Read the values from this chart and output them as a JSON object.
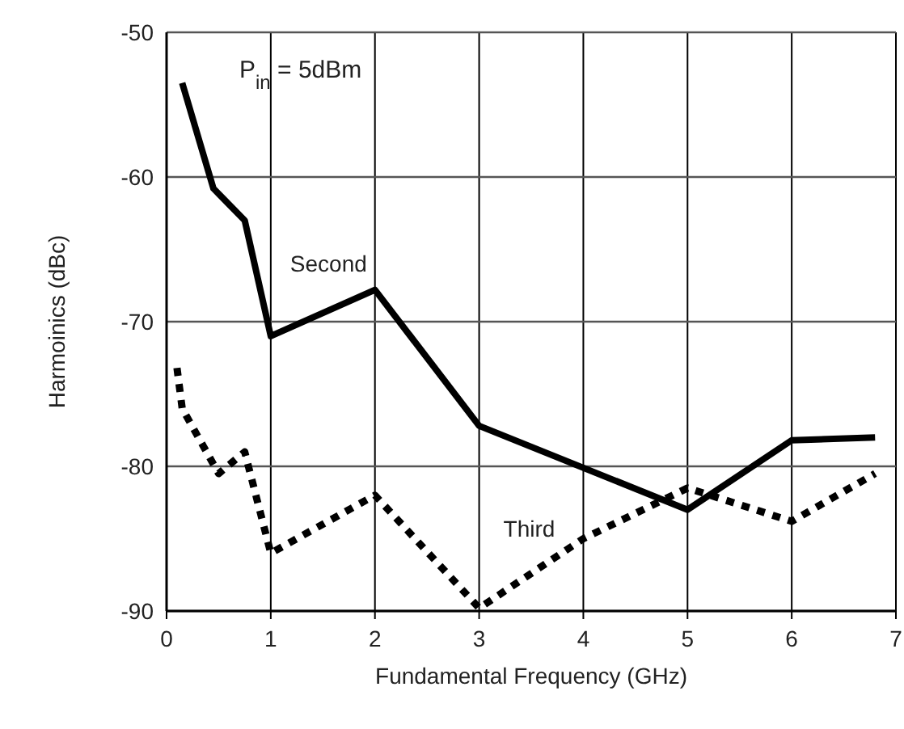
{
  "chart_data": {
    "type": "line",
    "xlabel": "Fundamental Frequency (GHz)",
    "ylabel": "Harmoinics (dBc)",
    "xlim": [
      0,
      7
    ],
    "xticks": [
      0,
      1,
      2,
      3,
      4,
      5,
      6,
      7
    ],
    "ylim": [
      -90,
      -50
    ],
    "yticks": [
      -90,
      -80,
      -70,
      -60,
      -50
    ],
    "grid": true,
    "marker": "none",
    "annotations": [
      "P$_{in}$ = 5dBm"
    ],
    "series": [
      {
        "name": "Second",
        "color": "#000000",
        "line_style": "solid",
        "x": [
          0.15,
          0.45,
          0.75,
          1,
          2,
          3,
          5,
          6,
          6.8
        ],
        "values": [
          -53.5,
          -60.8,
          -63,
          -71,
          -67.8,
          -77.2,
          -83,
          -78.2,
          -78
        ]
      },
      {
        "name": "Third",
        "color": "#000000",
        "line_style": "dotted",
        "x": [
          0.1,
          0.15,
          0.5,
          0.75,
          1,
          2,
          3,
          4,
          5,
          6,
          6.8
        ],
        "values": [
          -73.2,
          -76,
          -80.5,
          -79,
          -86,
          -82,
          -89.8,
          -85,
          -81.5,
          -83.8,
          -80.5
        ]
      }
    ]
  }
}
